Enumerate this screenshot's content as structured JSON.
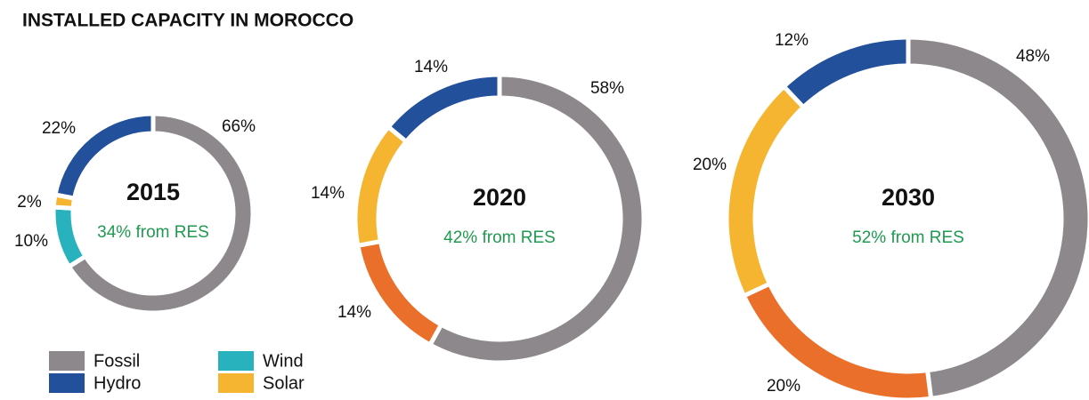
{
  "title": "INSTALLED CAPACITY IN MOROCCO",
  "legend": [
    {
      "name": "Fossil",
      "color": "#8c888b"
    },
    {
      "name": "Hydro",
      "color": "#22509a"
    },
    {
      "name": "Wind",
      "color": "#27b2be"
    },
    {
      "name": "Solar",
      "color": "#f6b531"
    }
  ],
  "chart_data": [
    {
      "type": "pie",
      "title": "2015",
      "subtitle": "34% from RES",
      "values": [
        66,
        10,
        2,
        22
      ],
      "value_labels": [
        "66%",
        "10%",
        "2%",
        "22%"
      ],
      "colors": [
        "#8c888b",
        "#27b2be",
        "#f6b531",
        "#22509a"
      ]
    },
    {
      "type": "pie",
      "title": "2020",
      "subtitle": "42% from RES",
      "values": [
        58,
        14,
        14,
        14
      ],
      "value_labels": [
        "58%",
        "14%",
        "14%",
        "14%"
      ],
      "colors": [
        "#8c888b",
        "#ea6f2a",
        "#f6b531",
        "#22509a"
      ]
    },
    {
      "type": "pie",
      "title": "2030",
      "subtitle": "52% from RES",
      "values": [
        48,
        20,
        20,
        12
      ],
      "value_labels": [
        "48%",
        "20%",
        "20%",
        "12%"
      ],
      "colors": [
        "#8c888b",
        "#ea6f2a",
        "#f6b531",
        "#22509a"
      ]
    }
  ]
}
